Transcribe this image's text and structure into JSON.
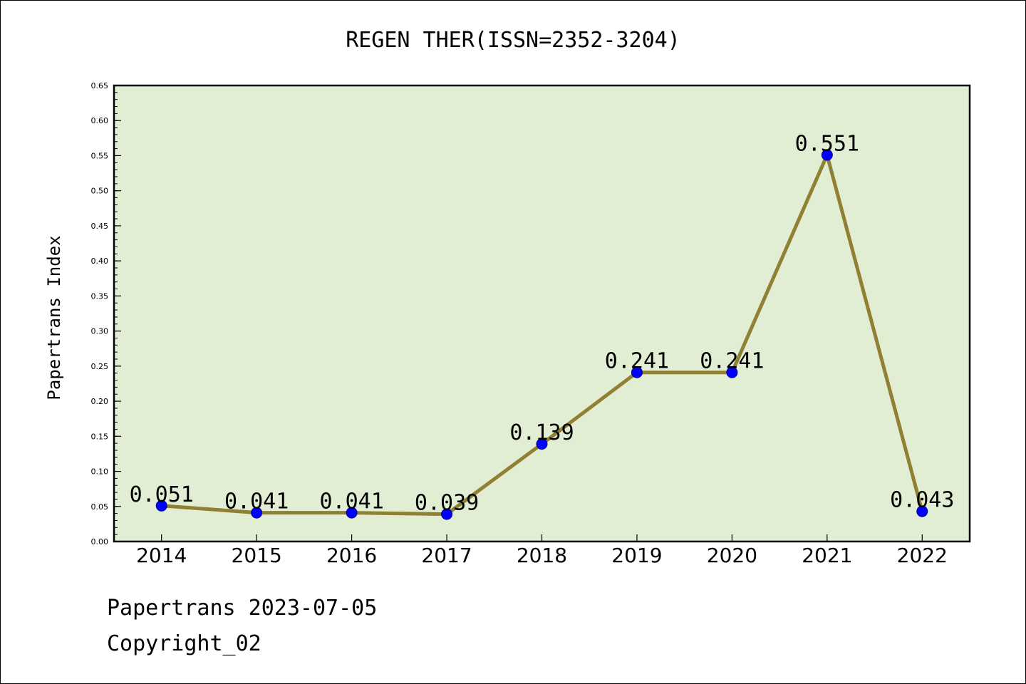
{
  "footer": {
    "line1": "Papertrans 2023-07-05",
    "line2": "Copyright_02"
  },
  "chart_data": {
    "type": "line",
    "title": "REGEN THER(ISSN=2352-3204)",
    "xlabel": "",
    "ylabel": "Papertrans Index",
    "categories": [
      "2014",
      "2015",
      "2016",
      "2017",
      "2018",
      "2019",
      "2020",
      "2021",
      "2022"
    ],
    "series": [
      {
        "values": [
          0.051,
          0.041,
          0.041,
          0.039,
          0.139,
          0.241,
          0.241,
          0.551,
          0.043
        ],
        "labels": [
          "0.051",
          "0.041",
          "0.041",
          "0.039",
          "0.139",
          "0.241",
          "0.241",
          "0.551",
          "0.043"
        ]
      }
    ],
    "ylim": [
      0,
      0.65
    ],
    "yticks": [
      "0.00",
      "0.05",
      "0.10",
      "0.15",
      "0.20",
      "0.25",
      "0.30",
      "0.35",
      "0.40",
      "0.45",
      "0.50",
      "0.55",
      "0.60",
      "0.65"
    ],
    "grid": false,
    "colors": {
      "plot_background": "#e2eed4",
      "line": "#8f8033",
      "marker": "#0000ff",
      "axis": "#000000"
    }
  }
}
